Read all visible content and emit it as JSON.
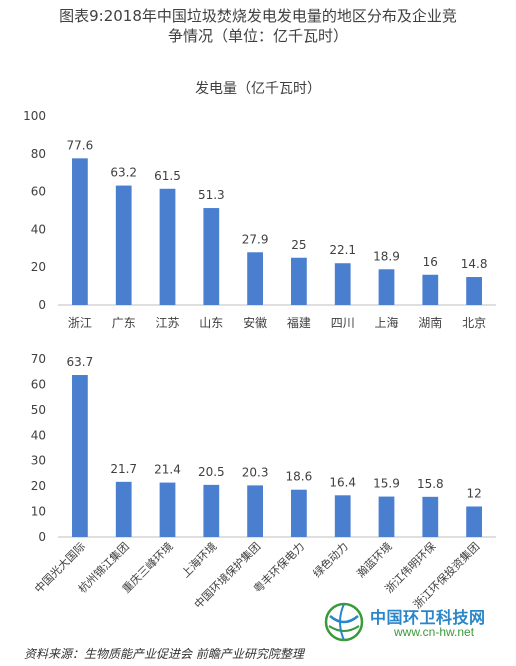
{
  "header": {
    "line1": "图表9:2018年中国垃圾焚烧发电发电量的地区分布及企业竞",
    "line2": "争情况（单位：亿千瓦时）"
  },
  "source": "资料来源：生物质能产业促进会  前瞻产业研究院整理",
  "brand": {
    "name": "中国环卫科技网",
    "url": "www.cn-hw.net"
  },
  "colors": {
    "bar": "#4a7fd0",
    "axis": "#bfbfbf",
    "text": "#404040"
  },
  "chart_data": [
    {
      "type": "bar",
      "title": "发电量（亿千瓦时）",
      "categories": [
        "浙江",
        "广东",
        "江苏",
        "山东",
        "安徽",
        "福建",
        "四川",
        "上海",
        "湖南",
        "北京"
      ],
      "values": [
        77.6,
        63.2,
        61.5,
        51.3,
        27.9,
        25,
        22.1,
        18.9,
        16,
        14.8
      ],
      "data_labels": [
        "77.6",
        "63.2",
        "61.5",
        "51.3",
        "27.9",
        "25",
        "22.1",
        "18.9",
        "16",
        "14.8"
      ],
      "ylim": [
        0,
        100
      ],
      "yticks": [
        "0",
        "20",
        "40",
        "60",
        "80",
        "100"
      ],
      "grid": false,
      "legend": "none"
    },
    {
      "type": "bar",
      "categories": [
        "中国光大国际",
        "杭州锦江集团",
        "重庆三峰环境",
        "上海环境",
        "中国环境保护集团",
        "粤丰环保电力",
        "绿色动力",
        "瀚蓝环境",
        "浙江伟明环保",
        "浙江环保投资集团"
      ],
      "values": [
        63.7,
        21.7,
        21.4,
        20.5,
        20.3,
        18.6,
        16.4,
        15.9,
        15.8,
        12
      ],
      "data_labels": [
        "63.7",
        "21.7",
        "21.4",
        "20.5",
        "20.3",
        "18.6",
        "16.4",
        "15.9",
        "15.8",
        "12"
      ],
      "ylim": [
        0,
        70
      ],
      "yticks": [
        "0",
        "10",
        "20",
        "30",
        "40",
        "50",
        "60",
        "70"
      ],
      "grid": false,
      "legend": "none"
    }
  ]
}
